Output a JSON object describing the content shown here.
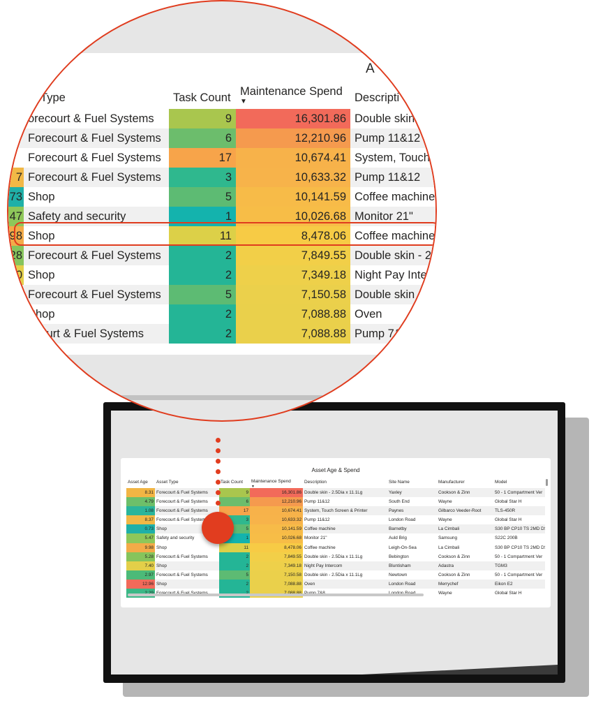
{
  "report": {
    "title": "Asset Age & Spend",
    "columns": {
      "asset_age": "Asset Age",
      "asset_type": "Asset Type",
      "task_count": "Task Count",
      "maintenance_spend": "Maintenance Spend",
      "description": "Description",
      "site_name": "Site Name",
      "manufacturer": "Manufacturer",
      "model": "Model"
    },
    "sort": {
      "column": "Maintenance Spend",
      "direction": "descending",
      "indicator": "▼"
    },
    "highlighted_row": 6,
    "rows": [
      {
        "age": "8.31",
        "type": "Forecourt & Fuel Systems",
        "tasks": "9",
        "spend": "16,301.86",
        "desc": "Double skin - 2.5Dia x 11.1Lg",
        "site": "Yaxley",
        "man": "Cookson & Zinn",
        "model": "50 - 1 Compartment Ver",
        "age_color": "#f2b544",
        "task_color": "#a9c64e",
        "spend_color": "#f26a5a"
      },
      {
        "age": "4.79",
        "type": "Forecourt & Fuel Systems",
        "tasks": "6",
        "spend": "12,210.96",
        "desc": "Pump 11&12",
        "site": "South End",
        "man": "Wayne",
        "model": "Global Star H",
        "age_color": "#6dbf6a",
        "task_color": "#6cbd6c",
        "spend_color": "#f59a4e"
      },
      {
        "age": "1.08",
        "type": "Forecourt & Fuel Systems",
        "tasks": "17",
        "spend": "10,674.41",
        "desc": "System, Touch Screen & Printer",
        "site": "Paynes",
        "man": "Gilbarco Veeder-Root",
        "model": "TLS-450R",
        "age_color": "#2bb59b",
        "task_color": "#f7a44a",
        "spend_color": "#f7b24a"
      },
      {
        "age": "8.37",
        "type": "Forecourt & Fuel Systems",
        "tasks": "3",
        "spend": "10,633.32",
        "desc": "Pump 11&12",
        "site": "London Road",
        "man": "Wayne",
        "model": "Global Star H",
        "age_color": "#f1b846",
        "task_color": "#2fb88e",
        "spend_color": "#f7b34a"
      },
      {
        "age": "0.73",
        "type": "Shop",
        "tasks": "5",
        "spend": "10,141.59",
        "desc": "Coffee machine",
        "site": "Barnetby",
        "man": "La Cimbali",
        "model": "S30 BP CP10 TS 2MD DS",
        "age_color": "#1fb0a8",
        "task_color": "#5dbb73",
        "spend_color": "#f7bb48"
      },
      {
        "age": "5.47",
        "type": "Safety and security",
        "tasks": "1",
        "spend": "10,026.68",
        "desc": "Monitor 21\"",
        "site": "Auld Brig",
        "man": "Samsung",
        "model": "S22C 200B",
        "age_color": "#8ec75a",
        "task_color": "#14b3ad",
        "spend_color": "#f7bd47"
      },
      {
        "age": "9.98",
        "type": "Shop",
        "tasks": "11",
        "spend": "8,478.06",
        "desc": "Coffee machine",
        "site": "Leigh-On-Sea",
        "man": "La Cimbali",
        "model": "S30 BP CP10 TS 2MD DS",
        "age_color": "#f3ab48",
        "task_color": "#dcd048",
        "spend_color": "#f7cb45"
      },
      {
        "age": "5.28",
        "type": "Forecourt & Fuel Systems",
        "tasks": "2",
        "spend": "7,849.55",
        "desc": "Double skin - 2.5Dia x 11.1Lg",
        "site": "Bebington",
        "man": "Cookson & Zinn",
        "model": "50 - 1 Compartment Ver",
        "age_color": "#86c45c",
        "task_color": "#24b596",
        "spend_color": "#f2cf48"
      },
      {
        "age": "7.40",
        "type": "Shop",
        "tasks": "2",
        "spend": "7,349.18",
        "desc": "Night Pay Intercom",
        "site": "Bluntisham",
        "man": "Adastra",
        "model": "TGM3",
        "age_color": "#e3cf49",
        "task_color": "#24b596",
        "spend_color": "#eed04a"
      },
      {
        "age": "2.97",
        "type": "Forecourt & Fuel Systems",
        "tasks": "5",
        "spend": "7,150.58",
        "desc": "Double skin - 2.5Dia x 11.1Lg",
        "site": "Newtown",
        "man": "Cookson & Zinn",
        "model": "50 - 1 Compartment Ver",
        "age_color": "#4cba78",
        "task_color": "#5dbb73",
        "spend_color": "#ebd04b"
      },
      {
        "age": "12.96",
        "type": "Shop",
        "tasks": "2",
        "spend": "7,088.88",
        "desc": "Oven",
        "site": "London Road",
        "man": "Merrychef",
        "model": "Eikon E2",
        "age_color": "#f26a5a",
        "task_color": "#24b596",
        "spend_color": "#ead04b"
      },
      {
        "age": "2.29",
        "type": "Forecourt & Fuel Systems",
        "tasks": "2",
        "spend": "7,088.88",
        "desc": "Pump 7&8",
        "site": "London Road",
        "man": "Wayne",
        "model": "Global Star H",
        "age_color": "#3bb886",
        "task_color": "#24b596",
        "spend_color": "#ead04b"
      }
    ]
  },
  "magnifier": {
    "partial_title": "A",
    "columns": {
      "asset_type": "et Type",
      "task_count": "Task Count",
      "maintenance_spend": "Maintenance Spend",
      "description": "Descripti"
    },
    "rows": [
      {
        "age": "",
        "type": "orecourt & Fuel Systems",
        "desc": "Double skin"
      },
      {
        "age": "",
        "type": "Forecourt & Fuel Systems",
        "desc": "Pump 11&12"
      },
      {
        "age": "",
        "type": "Forecourt & Fuel Systems",
        "desc": "System, Touch S"
      },
      {
        "age": "7",
        "type": "Forecourt & Fuel Systems",
        "desc": "Pump 11&12"
      },
      {
        "age": "73",
        "type": "Shop",
        "desc": "Coffee machine"
      },
      {
        "age": "47",
        "type": "Safety and security",
        "desc": "Monitor 21\""
      },
      {
        "age": "98",
        "type": "Shop",
        "desc": "Coffee machine"
      },
      {
        "age": "28",
        "type": "Forecourt & Fuel Systems",
        "desc": "Double skin - 2.5"
      },
      {
        "age": "0",
        "type": "Shop",
        "desc": "Night Pay Interc"
      },
      {
        "age": "",
        "type": "Forecourt & Fuel Systems",
        "desc": "Double skin - "
      },
      {
        "age": "",
        "type": "Shop",
        "desc": "Oven"
      },
      {
        "age": "",
        "type": "ecourt & Fuel Systems",
        "desc": "Pump 7&8"
      }
    ]
  },
  "colors": {
    "accent": "#e13d1f",
    "monitor": "#111111",
    "canvas": "#e6e6e6"
  }
}
